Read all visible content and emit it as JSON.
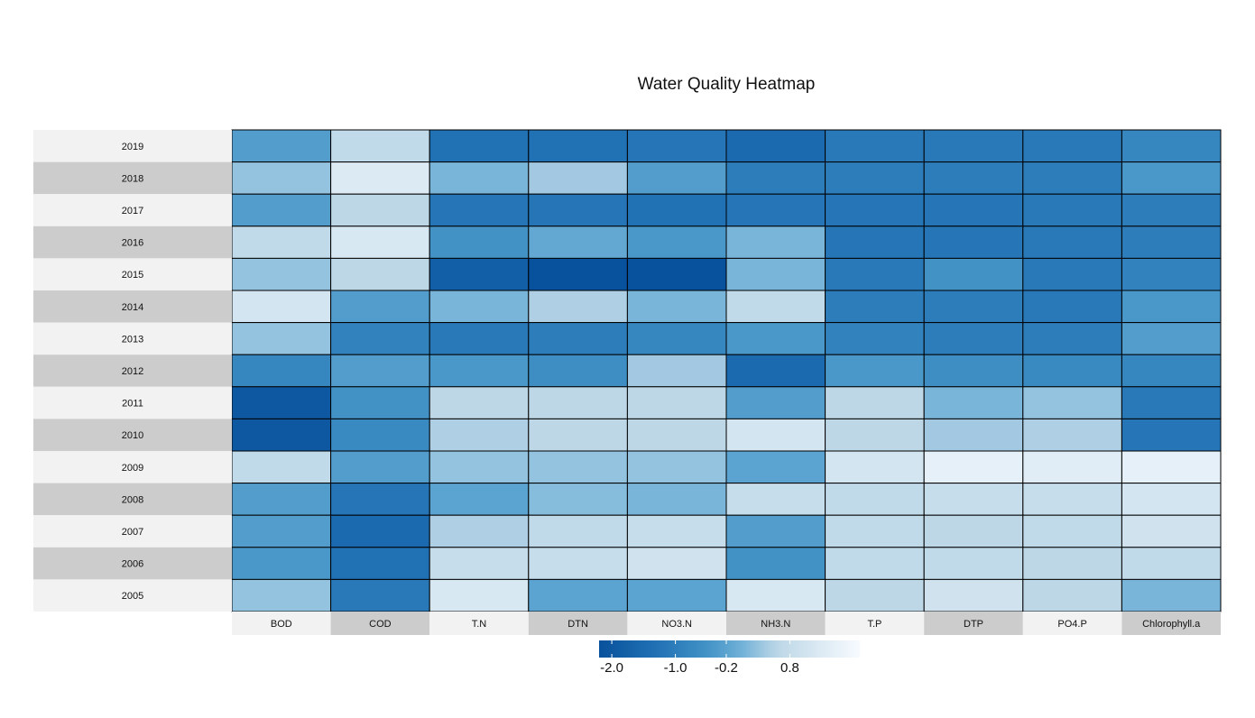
{
  "chart_data": {
    "type": "heatmap",
    "title": "Water Quality Heatmap",
    "columns": [
      "BOD",
      "COD",
      "T.N",
      "DTN",
      "NO3.N",
      "NH3.N",
      "T.P",
      "DTP",
      "PO4.P",
      "Chlorophyll.a"
    ],
    "rows": [
      "2019",
      "2018",
      "2017",
      "2016",
      "2015",
      "2014",
      "2013",
      "2012",
      "2011",
      "2010",
      "2009",
      "2008",
      "2007",
      "2006",
      "2005"
    ],
    "values": [
      [
        -0.3,
        0.7,
        -1.3,
        -1.3,
        -1.2,
        -1.5,
        -1.1,
        -1.1,
        -1.1,
        -0.8
      ],
      [
        0.3,
        1.3,
        0.1,
        0.4,
        -0.3,
        -1.0,
        -1.0,
        -1.0,
        -1.0,
        -0.4
      ],
      [
        -0.3,
        0.6,
        -1.2,
        -1.2,
        -1.3,
        -1.2,
        -1.2,
        -1.2,
        -1.1,
        -1.0
      ],
      [
        0.7,
        1.2,
        -0.5,
        -0.1,
        -0.4,
        0.1,
        -1.2,
        -1.2,
        -1.1,
        -1.0
      ],
      [
        0.3,
        0.6,
        -1.8,
        -2.2,
        -2.3,
        0.1,
        -1.1,
        -0.5,
        -1.1,
        -0.9
      ],
      [
        1.1,
        -0.3,
        0.1,
        0.5,
        0.1,
        0.7,
        -1.0,
        -1.0,
        -1.1,
        -0.4
      ],
      [
        0.3,
        -0.9,
        -1.1,
        -1.0,
        -0.8,
        -0.4,
        -0.9,
        -1.0,
        -1.0,
        -0.3
      ],
      [
        -0.8,
        -0.3,
        -0.4,
        -0.6,
        0.4,
        -1.5,
        -0.4,
        -0.6,
        -0.7,
        -0.8
      ],
      [
        -2.0,
        -0.5,
        0.6,
        0.6,
        0.6,
        -0.3,
        0.6,
        0.1,
        0.3,
        -1.1
      ],
      [
        -2.0,
        -0.7,
        0.5,
        0.6,
        0.6,
        1.1,
        0.6,
        0.4,
        0.5,
        -1.2
      ],
      [
        0.7,
        -0.3,
        0.3,
        0.3,
        0.3,
        -0.2,
        1.1,
        1.5,
        1.4,
        1.5
      ],
      [
        -0.3,
        -1.2,
        -0.2,
        0.2,
        0.1,
        0.8,
        0.7,
        0.8,
        0.8,
        1.1
      ],
      [
        -0.3,
        -1.5,
        0.5,
        0.7,
        0.8,
        -0.3,
        0.7,
        0.6,
        0.7,
        1.0
      ],
      [
        -0.4,
        -1.3,
        0.8,
        0.8,
        1.0,
        -0.5,
        0.7,
        0.7,
        0.6,
        0.7
      ],
      [
        0.3,
        -1.1,
        1.2,
        -0.2,
        -0.2,
        1.2,
        0.6,
        1.0,
        0.6,
        0.1
      ]
    ],
    "legend": {
      "ticks": [
        -2.0,
        -1.0,
        -0.2,
        0.8
      ],
      "tick_labels": [
        "-2.0",
        "-1.0",
        "-0.2",
        "0.8"
      ],
      "range": [
        -2.2,
        1.9
      ],
      "placement": "bottom"
    },
    "colors": {
      "low": "#08519c",
      "mid1": "#3182bd",
      "mid2": "#6baed6",
      "mid3": "#c6dbef",
      "high": "#f7fbff",
      "label_band_light": "#f2f2f2",
      "label_band_dark": "#cccccc",
      "cell_border": "#000000"
    }
  }
}
